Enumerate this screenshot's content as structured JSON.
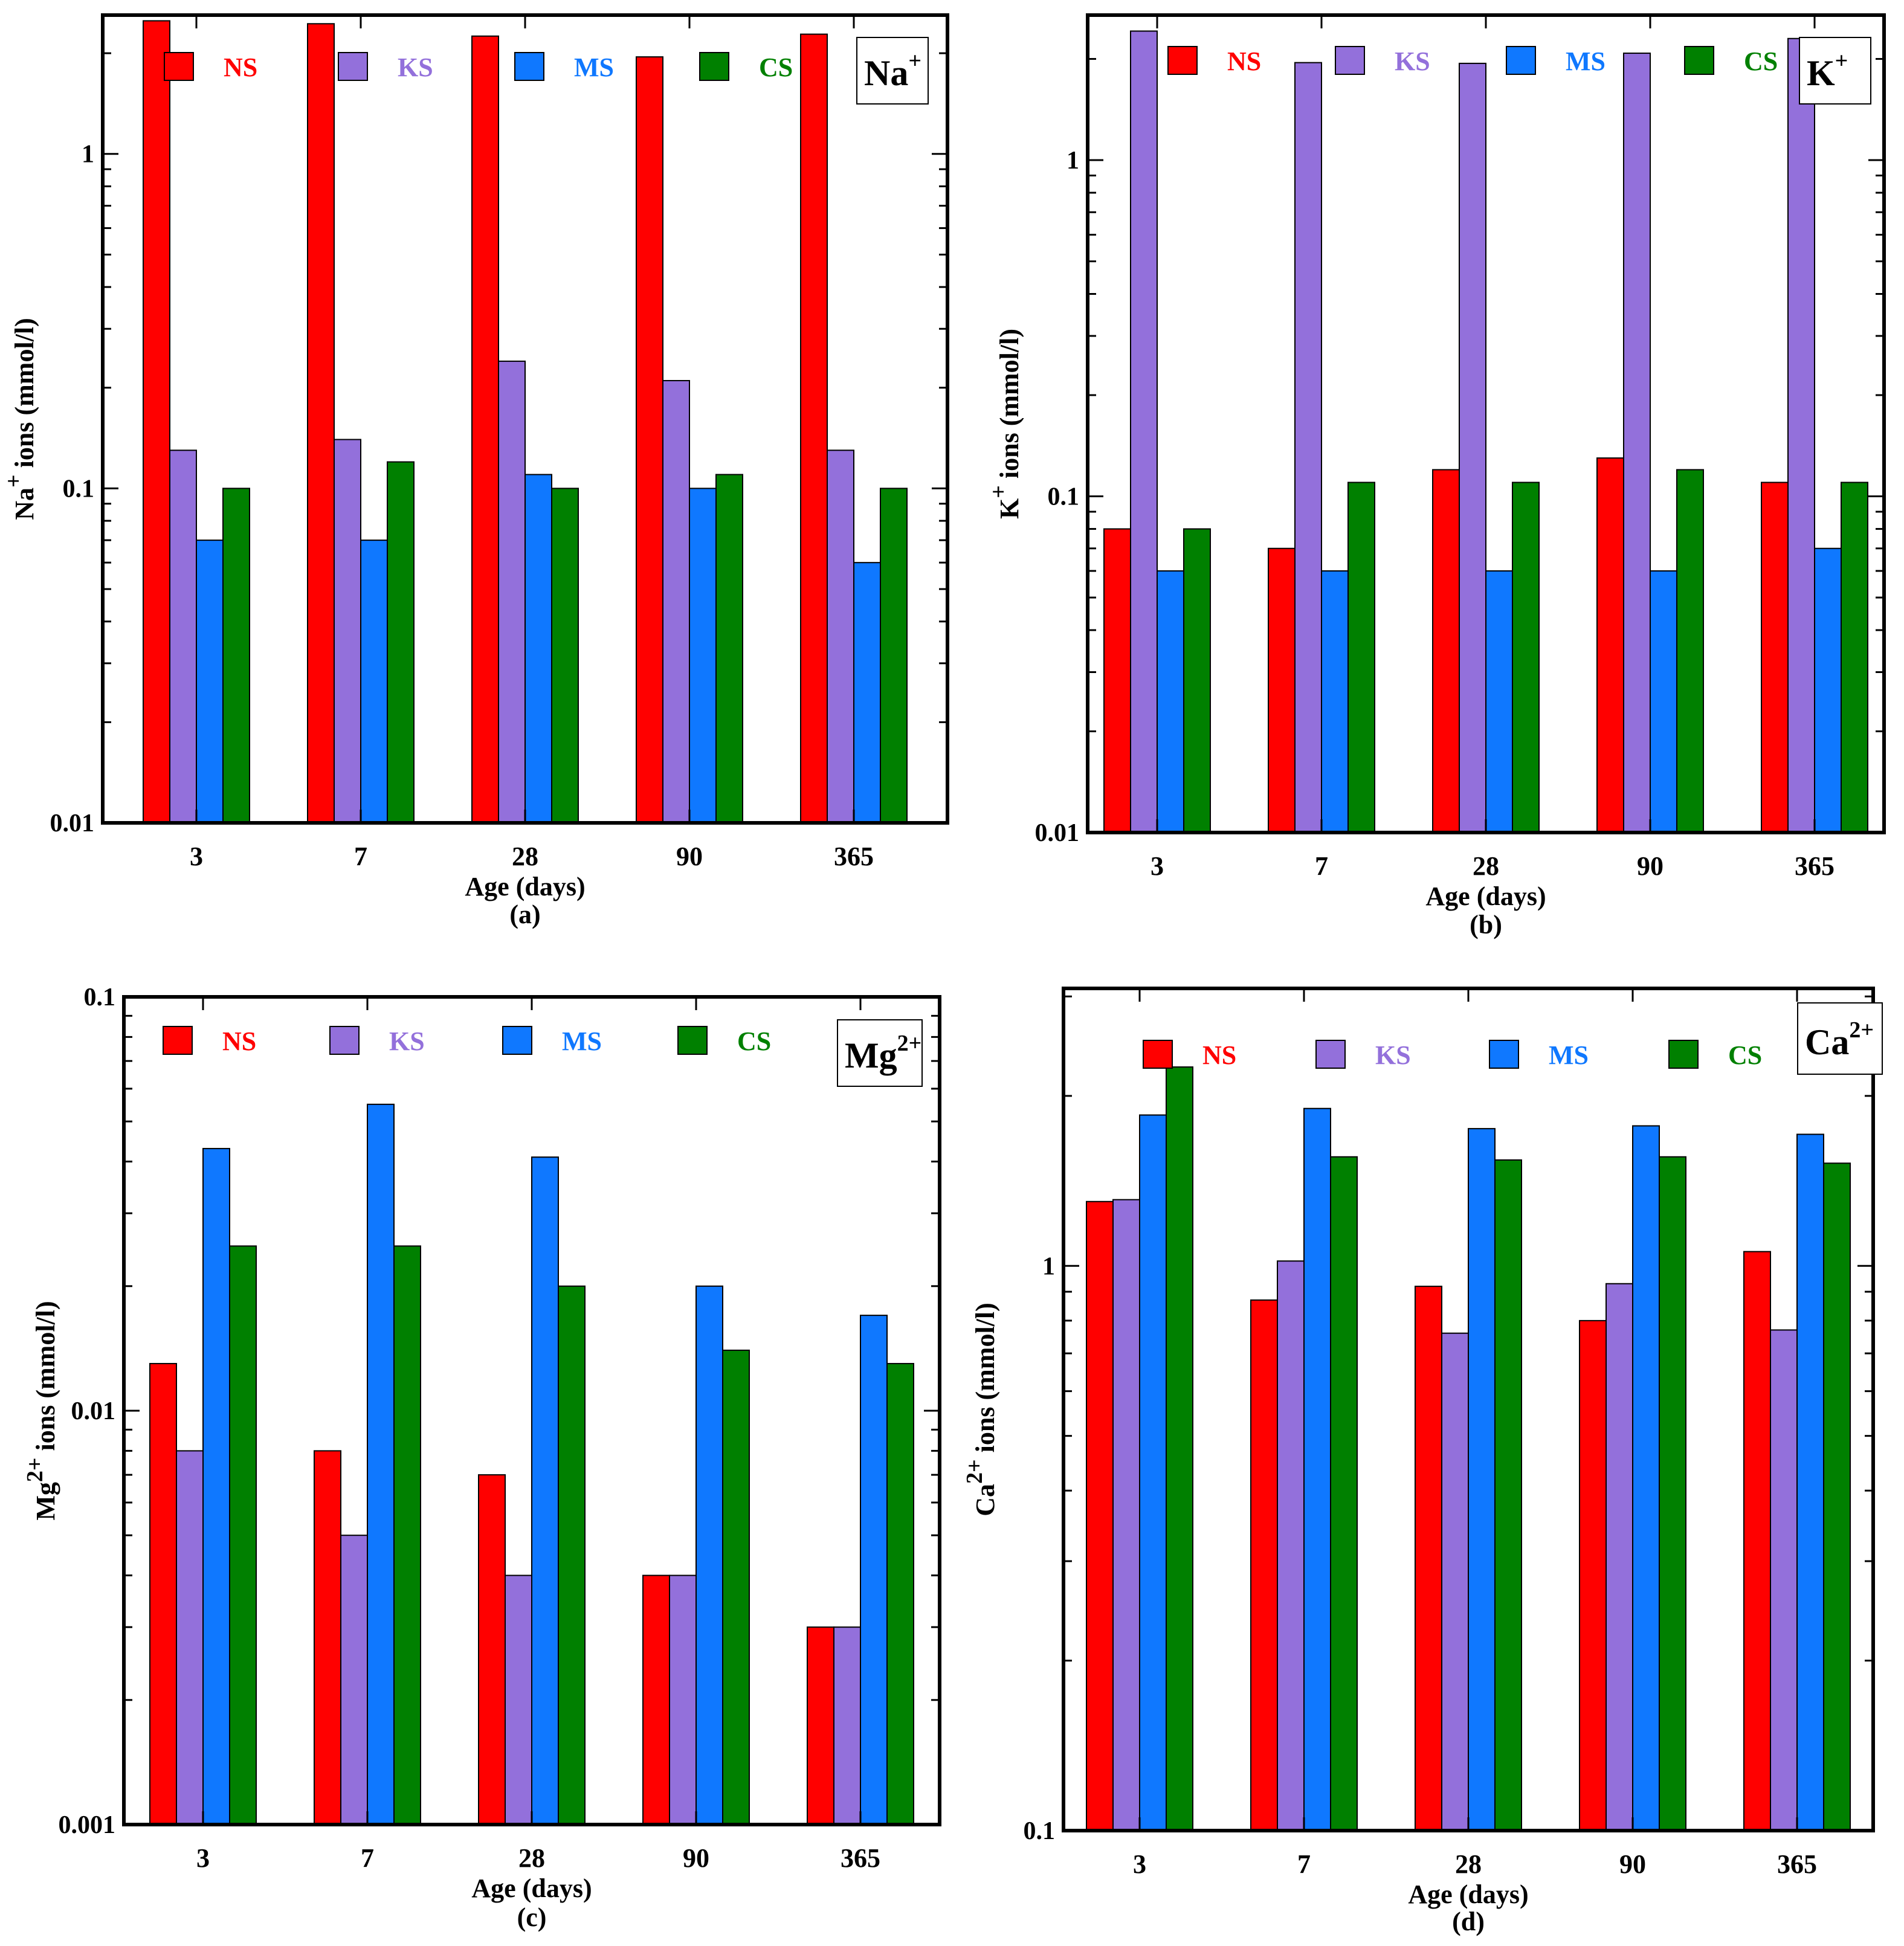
{
  "figure_series": [
    {
      "key": "NS",
      "color": "#ff0000"
    },
    {
      "key": "KS",
      "color": "#9370db"
    },
    {
      "key": "MS",
      "color": "#0f78ff"
    },
    {
      "key": "CS",
      "color": "#008000"
    }
  ],
  "chart_data": [
    {
      "type": "bar",
      "panel": "(a)",
      "ion_label": {
        "base": "Na",
        "sup": "+"
      },
      "ylabel": {
        "base": "Na",
        "sup": "+",
        "rest": " ions (mmol/l)"
      },
      "xlabel": "Age (days)",
      "yscale": "log",
      "ylim": [
        0.01,
        2.6
      ],
      "yticks": [
        {
          "v": 0.01,
          "label": "0.01"
        },
        {
          "v": 0.1,
          "label": "0.1"
        },
        {
          "v": 1,
          "label": "1"
        }
      ],
      "categories": [
        "3",
        "7",
        "28",
        "90",
        "365"
      ],
      "series": [
        {
          "name": "NS",
          "values": [
            2.5,
            2.45,
            2.25,
            1.95,
            2.28
          ]
        },
        {
          "name": "KS",
          "values": [
            0.13,
            0.14,
            0.24,
            0.21,
            0.13
          ]
        },
        {
          "name": "MS",
          "values": [
            0.07,
            0.07,
            0.11,
            0.1,
            0.06
          ]
        },
        {
          "name": "CS",
          "values": [
            0.1,
            0.12,
            0.1,
            0.11,
            0.1
          ]
        }
      ]
    },
    {
      "type": "bar",
      "panel": "(b)",
      "ion_label": {
        "base": "K",
        "sup": "+"
      },
      "ylabel": {
        "base": "K",
        "sup": "+",
        "rest": " ions (mmol/l)"
      },
      "xlabel": "Age (days)",
      "yscale": "log",
      "ylim": [
        0.01,
        2.7
      ],
      "yticks": [
        {
          "v": 0.01,
          "label": "0.01"
        },
        {
          "v": 0.1,
          "label": "0.1"
        },
        {
          "v": 1,
          "label": "1"
        }
      ],
      "categories": [
        "3",
        "7",
        "28",
        "90",
        "365"
      ],
      "series": [
        {
          "name": "NS",
          "values": [
            0.08,
            0.07,
            0.12,
            0.13,
            0.11
          ]
        },
        {
          "name": "KS",
          "values": [
            2.42,
            1.95,
            1.94,
            2.08,
            2.3
          ]
        },
        {
          "name": "MS",
          "values": [
            0.06,
            0.06,
            0.06,
            0.06,
            0.07
          ]
        },
        {
          "name": "CS",
          "values": [
            0.08,
            0.11,
            0.11,
            0.12,
            0.11
          ]
        }
      ]
    },
    {
      "type": "bar",
      "panel": "(c)",
      "ion_label": {
        "base": "Mg",
        "sup": "2+"
      },
      "ylabel": {
        "base": "Mg",
        "sup": "2+",
        "rest": " ions (mmol/l)"
      },
      "xlabel": "Age (days)",
      "yscale": "log",
      "ylim": [
        0.001,
        0.1
      ],
      "yticks": [
        {
          "v": 0.001,
          "label": "0.001"
        },
        {
          "v": 0.01,
          "label": "0.01"
        },
        {
          "v": 0.1,
          "label": "0.1"
        }
      ],
      "categories": [
        "3",
        "7",
        "28",
        "90",
        "365"
      ],
      "series": [
        {
          "name": "NS",
          "values": [
            0.013,
            0.008,
            0.007,
            0.004,
            0.003
          ]
        },
        {
          "name": "KS",
          "values": [
            0.008,
            0.005,
            0.004,
            0.004,
            0.003
          ]
        },
        {
          "name": "MS",
          "values": [
            0.043,
            0.055,
            0.041,
            0.02,
            0.017
          ]
        },
        {
          "name": "CS",
          "values": [
            0.025,
            0.025,
            0.02,
            0.014,
            0.013
          ]
        }
      ]
    },
    {
      "type": "bar",
      "panel": "(d)",
      "ion_label": {
        "base": "Ca",
        "sup": "2+"
      },
      "ylabel": {
        "base": "Ca",
        "sup": "2+",
        "rest": " ions (mmol/l)"
      },
      "xlabel": "Age (days)",
      "yscale": "log",
      "ylim": [
        0.1,
        3.1
      ],
      "yticks": [
        {
          "v": 0.1,
          "label": "0.1"
        },
        {
          "v": 1,
          "label": "1"
        }
      ],
      "categories": [
        "3",
        "7",
        "28",
        "90",
        "365"
      ],
      "series": [
        {
          "name": "NS",
          "values": [
            1.3,
            0.87,
            0.92,
            0.8,
            1.06
          ]
        },
        {
          "name": "KS",
          "values": [
            1.31,
            1.02,
            0.76,
            0.93,
            0.77
          ]
        },
        {
          "name": "MS",
          "values": [
            1.85,
            1.9,
            1.75,
            1.77,
            1.71
          ]
        },
        {
          "name": "CS",
          "values": [
            2.25,
            1.56,
            1.54,
            1.56,
            1.52
          ]
        }
      ]
    }
  ]
}
